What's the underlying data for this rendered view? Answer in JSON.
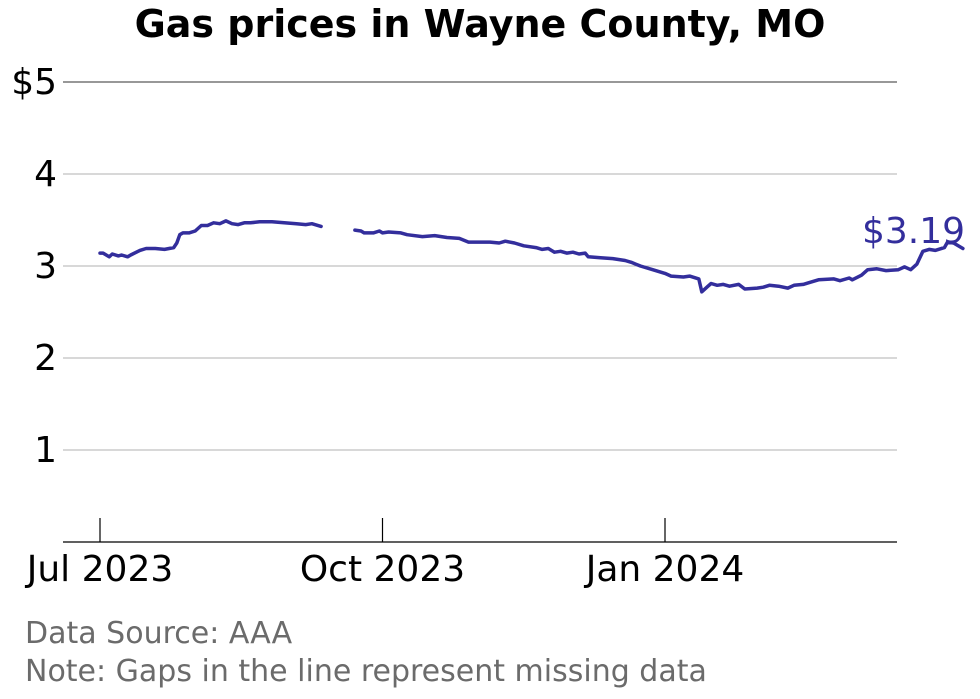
{
  "chart_data": {
    "type": "line",
    "title": "Gas prices in Wayne County, MO",
    "xlabel": "",
    "ylabel": "",
    "x_range": [
      "2023-06-19",
      "2024-04-09"
    ],
    "ylim": [
      0,
      5
    ],
    "y_ticks": [
      1,
      2,
      3,
      4,
      5
    ],
    "y_tick_labels": [
      "1",
      "2",
      "3",
      "4",
      "$5"
    ],
    "x_ticks": [
      "2023-07-01",
      "2023-10-01",
      "2024-01-01"
    ],
    "x_tick_labels": [
      "Jul 2023",
      "Oct 2023",
      "Jan 2024"
    ],
    "grid": "horizontal",
    "legend": "none",
    "end_label": "$3.19",
    "series": [
      {
        "color": "#332e9c",
        "segments": [
          [
            [
              "2023-07-01",
              3.14
            ],
            [
              "2023-07-02",
              3.14
            ],
            [
              "2023-07-04",
              3.1
            ],
            [
              "2023-07-05",
              3.13
            ],
            [
              "2023-07-07",
              3.11
            ],
            [
              "2023-07-08",
              3.12
            ],
            [
              "2023-07-10",
              3.1
            ],
            [
              "2023-07-11",
              3.12
            ],
            [
              "2023-07-14",
              3.17
            ],
            [
              "2023-07-16",
              3.19
            ],
            [
              "2023-07-19",
              3.19
            ],
            [
              "2023-07-22",
              3.18
            ],
            [
              "2023-07-25",
              3.2
            ],
            [
              "2023-07-26",
              3.25
            ],
            [
              "2023-07-27",
              3.34
            ],
            [
              "2023-07-28",
              3.36
            ],
            [
              "2023-07-30",
              3.36
            ],
            [
              "2023-08-01",
              3.38
            ],
            [
              "2023-08-03",
              3.44
            ],
            [
              "2023-08-05",
              3.44
            ],
            [
              "2023-08-07",
              3.47
            ],
            [
              "2023-08-09",
              3.46
            ],
            [
              "2023-08-11",
              3.49
            ],
            [
              "2023-08-13",
              3.46
            ],
            [
              "2023-08-15",
              3.45
            ],
            [
              "2023-08-17",
              3.47
            ],
            [
              "2023-08-19",
              3.47
            ],
            [
              "2023-08-22",
              3.48
            ],
            [
              "2023-08-26",
              3.48
            ],
            [
              "2023-08-30",
              3.47
            ],
            [
              "2023-09-03",
              3.46
            ],
            [
              "2023-09-06",
              3.45
            ],
            [
              "2023-09-08",
              3.46
            ],
            [
              "2023-09-11",
              3.43
            ]
          ],
          [
            [
              "2023-09-22",
              3.39
            ],
            [
              "2023-09-24",
              3.38
            ],
            [
              "2023-09-25",
              3.36
            ],
            [
              "2023-09-28",
              3.36
            ],
            [
              "2023-09-30",
              3.38
            ],
            [
              "2023-10-01",
              3.36
            ],
            [
              "2023-10-03",
              3.37
            ],
            [
              "2023-10-07",
              3.36
            ],
            [
              "2023-10-09",
              3.34
            ],
            [
              "2023-10-14",
              3.32
            ],
            [
              "2023-10-18",
              3.33
            ],
            [
              "2023-10-22",
              3.31
            ],
            [
              "2023-10-26",
              3.3
            ],
            [
              "2023-10-29",
              3.26
            ],
            [
              "2023-11-01",
              3.26
            ],
            [
              "2023-11-05",
              3.26
            ],
            [
              "2023-11-08",
              3.25
            ],
            [
              "2023-11-10",
              3.27
            ],
            [
              "2023-11-13",
              3.25
            ],
            [
              "2023-11-16",
              3.22
            ],
            [
              "2023-11-20",
              3.2
            ],
            [
              "2023-11-22",
              3.18
            ],
            [
              "2023-11-24",
              3.19
            ],
            [
              "2023-11-26",
              3.15
            ],
            [
              "2023-11-28",
              3.16
            ],
            [
              "2023-11-30",
              3.14
            ],
            [
              "2023-12-02",
              3.15
            ],
            [
              "2023-12-04",
              3.13
            ],
            [
              "2023-12-06",
              3.14
            ],
            [
              "2023-12-07",
              3.1
            ],
            [
              "2023-12-11",
              3.09
            ],
            [
              "2023-12-15",
              3.08
            ],
            [
              "2023-12-19",
              3.06
            ],
            [
              "2023-12-21",
              3.04
            ],
            [
              "2023-12-24",
              3.0
            ],
            [
              "2023-12-28",
              2.96
            ],
            [
              "2024-01-01",
              2.92
            ],
            [
              "2024-01-03",
              2.89
            ],
            [
              "2024-01-07",
              2.88
            ],
            [
              "2024-01-09",
              2.89
            ],
            [
              "2024-01-12",
              2.86
            ],
            [
              "2024-01-13",
              2.72
            ],
            [
              "2024-01-15",
              2.78
            ],
            [
              "2024-01-16",
              2.81
            ],
            [
              "2024-01-18",
              2.79
            ],
            [
              "2024-01-20",
              2.8
            ],
            [
              "2024-01-22",
              2.78
            ],
            [
              "2024-01-25",
              2.8
            ],
            [
              "2024-01-27",
              2.75
            ],
            [
              "2024-01-31",
              2.76
            ],
            [
              "2024-02-02",
              2.77
            ],
            [
              "2024-02-04",
              2.79
            ],
            [
              "2024-02-07",
              2.78
            ],
            [
              "2024-02-10",
              2.76
            ],
            [
              "2024-02-12",
              2.79
            ],
            [
              "2024-02-15",
              2.8
            ],
            [
              "2024-02-17",
              2.82
            ],
            [
              "2024-02-20",
              2.85
            ],
            [
              "2024-02-25",
              2.86
            ],
            [
              "2024-02-27",
              2.84
            ],
            [
              "2024-03-01",
              2.87
            ],
            [
              "2024-03-02",
              2.85
            ],
            [
              "2024-03-05",
              2.9
            ],
            [
              "2024-03-07",
              2.96
            ],
            [
              "2024-03-10",
              2.97
            ],
            [
              "2024-03-13",
              2.95
            ],
            [
              "2024-03-17",
              2.96
            ],
            [
              "2024-03-19",
              2.99
            ],
            [
              "2024-03-21",
              2.96
            ],
            [
              "2024-03-23",
              3.02
            ],
            [
              "2024-03-25",
              3.16
            ],
            [
              "2024-03-27",
              3.18
            ],
            [
              "2024-03-29",
              3.17
            ],
            [
              "2024-04-01",
              3.2
            ],
            [
              "2024-04-02",
              3.26
            ],
            [
              "2024-04-04",
              3.25
            ],
            [
              "2024-04-07",
              3.19
            ]
          ]
        ]
      }
    ]
  },
  "footer": {
    "source": "Data Source: AAA",
    "note": "Note: Gaps in the line represent missing data"
  }
}
